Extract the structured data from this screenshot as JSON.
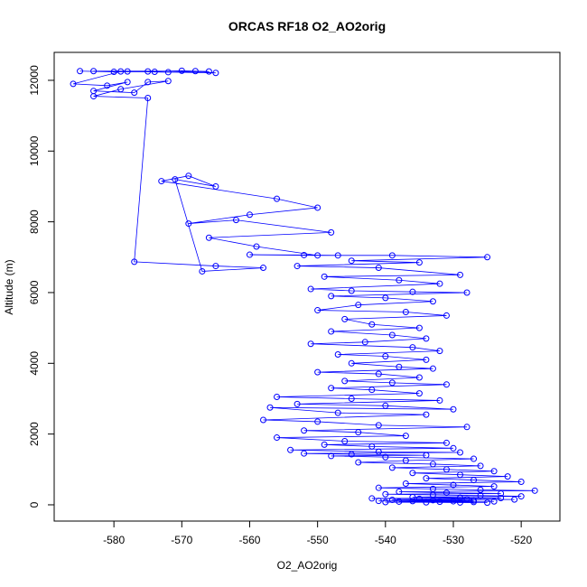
{
  "chart_data": {
    "type": "scatter",
    "title": "ORCAS RF18 O2_AO2orig",
    "x_label": "O2_AO2orig",
    "y_label": "Altitude (m)",
    "color": "#0000ff",
    "lines": true,
    "xlim": [
      -588.8,
      -514.3
    ],
    "ylim": [
      -460,
      12790
    ],
    "xticks": [
      -580,
      -570,
      -560,
      -550,
      -540,
      -530,
      -520
    ],
    "yticks": [
      0,
      2000,
      4000,
      6000,
      8000,
      10000,
      12000
    ],
    "x": [
      -585,
      -580,
      -575,
      -570,
      -566,
      -572,
      -578,
      -583,
      -568,
      -565,
      -574,
      -579,
      -586,
      -581,
      -578,
      -583,
      -577,
      -575,
      -572,
      -579,
      -583,
      -575,
      -577,
      -565,
      -558,
      -567,
      -571,
      -565,
      -569,
      -573,
      -556,
      -550,
      -560,
      -569,
      -562,
      -548,
      -566,
      -559,
      -550,
      -560,
      -552,
      -547,
      -539,
      -525,
      -545,
      -535,
      -553,
      -541,
      -529,
      -549,
      -538,
      -532,
      -551,
      -545,
      -536,
      -528,
      -548,
      -540,
      -533,
      -544,
      -550,
      -537,
      -531,
      -546,
      -542,
      -535,
      -548,
      -539,
      -534,
      -543,
      -551,
      -536,
      -532,
      -547,
      -540,
      -534,
      -545,
      -538,
      -533,
      -550,
      -541,
      -535,
      -546,
      -539,
      -531,
      -548,
      -542,
      -535,
      -556,
      -545,
      -532,
      -553,
      -540,
      -530,
      -557,
      -547,
      -534,
      -558,
      -550,
      -541,
      -528,
      -552,
      -544,
      -537,
      -556,
      -546,
      -531,
      -549,
      -542,
      -530,
      -554,
      -541,
      -529,
      -552,
      -545,
      -534,
      -548,
      -540,
      -527,
      -537,
      -544,
      -533,
      -526,
      -539,
      -531,
      -524,
      -536,
      -529,
      -522,
      -534,
      -527,
      -520,
      -537,
      -530,
      -524,
      -541,
      -533,
      -526,
      -518,
      -538,
      -531,
      -523,
      -540,
      -533,
      -526,
      -520,
      -536,
      -529,
      -523,
      -542,
      -535,
      -528,
      -521,
      -539,
      -533,
      -527,
      -541,
      -536,
      -530,
      -524,
      -538,
      -532,
      -527,
      -540,
      -534,
      -529,
      -525
    ],
    "y": [
      12260,
      12240,
      12250,
      12270,
      12250,
      12230,
      12250,
      12260,
      12260,
      12210,
      12240,
      12250,
      11900,
      11850,
      11950,
      11700,
      11650,
      11950,
      11980,
      11750,
      11550,
      11500,
      6870,
      6750,
      6700,
      6600,
      9200,
      9000,
      9300,
      9150,
      8650,
      8400,
      8200,
      7950,
      8050,
      7700,
      7550,
      7300,
      7050,
      7070,
      7060,
      7050,
      7050,
      7000,
      6900,
      6850,
      6750,
      6700,
      6500,
      6450,
      6350,
      6250,
      6100,
      6050,
      6020,
      6000,
      5900,
      5850,
      5750,
      5650,
      5500,
      5450,
      5350,
      5250,
      5100,
      5000,
      4900,
      4800,
      4700,
      4600,
      4550,
      4450,
      4350,
      4250,
      4200,
      4100,
      4000,
      3900,
      3850,
      3750,
      3700,
      3600,
      3500,
      3450,
      3400,
      3300,
      3250,
      3150,
      3050,
      3000,
      2950,
      2850,
      2800,
      2700,
      2750,
      2600,
      2550,
      2400,
      2350,
      2250,
      2200,
      2100,
      2050,
      1950,
      1900,
      1800,
      1750,
      1700,
      1650,
      1600,
      1550,
      1500,
      1480,
      1450,
      1430,
      1400,
      1380,
      1350,
      1300,
      1250,
      1200,
      1150,
      1100,
      1050,
      1000,
      950,
      900,
      850,
      800,
      750,
      700,
      650,
      600,
      560,
      520,
      480,
      450,
      420,
      400,
      370,
      340,
      320,
      300,
      280,
      260,
      240,
      220,
      200,
      190,
      180,
      170,
      160,
      150,
      140,
      130,
      120,
      110,
      105,
      100,
      95,
      90,
      85,
      80,
      75,
      70,
      65,
      60
    ]
  }
}
